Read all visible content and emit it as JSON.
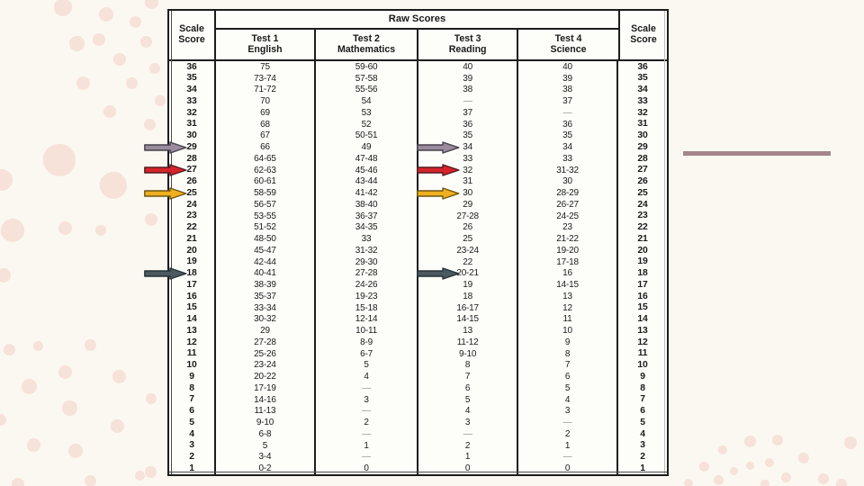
{
  "slide": {
    "background": "#fbf8f1"
  },
  "decor": {
    "accent_line_color": "#a5868c",
    "dot_color": "#f6e2d9"
  },
  "table": {
    "raw_scores_header": "Raw Scores",
    "scale_header_line1": "Scale",
    "scale_header_line2": "Score",
    "tests": [
      {
        "line1": "Test 1",
        "line2": "English"
      },
      {
        "line1": "Test 2",
        "line2": "Mathematics"
      },
      {
        "line1": "Test 3",
        "line2": "Reading"
      },
      {
        "line1": "Test 4",
        "line2": "Science"
      }
    ],
    "rows": [
      {
        "scale": "36",
        "english": "75",
        "math": "59-60",
        "reading": "40",
        "science": "40"
      },
      {
        "scale": "35",
        "english": "73-74",
        "math": "57-58",
        "reading": "39",
        "science": "39"
      },
      {
        "scale": "34",
        "english": "71-72",
        "math": "55-56",
        "reading": "38",
        "science": "38"
      },
      {
        "scale": "33",
        "english": "70",
        "math": "54",
        "reading": "—",
        "science": "37"
      },
      {
        "scale": "32",
        "english": "69",
        "math": "53",
        "reading": "37",
        "science": "—"
      },
      {
        "scale": "31",
        "english": "68",
        "math": "52",
        "reading": "36",
        "science": "36"
      },
      {
        "scale": "30",
        "english": "67",
        "math": "50-51",
        "reading": "35",
        "science": "35"
      },
      {
        "scale": "29",
        "english": "66",
        "math": "49",
        "reading": "34",
        "science": "34"
      },
      {
        "scale": "28",
        "english": "64-65",
        "math": "47-48",
        "reading": "33",
        "science": "33"
      },
      {
        "scale": "27",
        "english": "62-63",
        "math": "45-46",
        "reading": "32",
        "science": "31-32"
      },
      {
        "scale": "26",
        "english": "60-61",
        "math": "43-44",
        "reading": "31",
        "science": "30"
      },
      {
        "scale": "25",
        "english": "58-59",
        "math": "41-42",
        "reading": "30",
        "science": "28-29"
      },
      {
        "scale": "24",
        "english": "56-57",
        "math": "38-40",
        "reading": "29",
        "science": "26-27"
      },
      {
        "scale": "23",
        "english": "53-55",
        "math": "36-37",
        "reading": "27-28",
        "science": "24-25"
      },
      {
        "scale": "22",
        "english": "51-52",
        "math": "34-35",
        "reading": "26",
        "science": "23"
      },
      {
        "scale": "21",
        "english": "48-50",
        "math": "33",
        "reading": "25",
        "science": "21-22"
      },
      {
        "scale": "20",
        "english": "45-47",
        "math": "31-32",
        "reading": "23-24",
        "science": "19-20"
      },
      {
        "scale": "19",
        "english": "42-44",
        "math": "29-30",
        "reading": "22",
        "science": "17-18"
      },
      {
        "scale": "18",
        "english": "40-41",
        "math": "27-28",
        "reading": "20-21",
        "science": "16"
      },
      {
        "scale": "17",
        "english": "38-39",
        "math": "24-26",
        "reading": "19",
        "science": "14-15"
      },
      {
        "scale": "16",
        "english": "35-37",
        "math": "19-23",
        "reading": "18",
        "science": "13"
      },
      {
        "scale": "15",
        "english": "33-34",
        "math": "15-18",
        "reading": "16-17",
        "science": "12"
      },
      {
        "scale": "14",
        "english": "30-32",
        "math": "12-14",
        "reading": "14-15",
        "science": "11"
      },
      {
        "scale": "13",
        "english": "29",
        "math": "10-11",
        "reading": "13",
        "science": "10"
      },
      {
        "scale": "12",
        "english": "27-28",
        "math": "8-9",
        "reading": "11-12",
        "science": "9"
      },
      {
        "scale": "11",
        "english": "25-26",
        "math": "6-7",
        "reading": "9-10",
        "science": "8"
      },
      {
        "scale": "10",
        "english": "23-24",
        "math": "5",
        "reading": "8",
        "science": "7"
      },
      {
        "scale": "9",
        "english": "20-22",
        "math": "4",
        "reading": "7",
        "science": "6"
      },
      {
        "scale": "8",
        "english": "17-19",
        "math": "—",
        "reading": "6",
        "science": "5"
      },
      {
        "scale": "7",
        "english": "14-16",
        "math": "3",
        "reading": "5",
        "science": "4"
      },
      {
        "scale": "6",
        "english": "11-13",
        "math": "—",
        "reading": "4",
        "science": "3"
      },
      {
        "scale": "5",
        "english": "9-10",
        "math": "2",
        "reading": "3",
        "science": "—"
      },
      {
        "scale": "4",
        "english": "6-8",
        "math": "—",
        "reading": "—",
        "science": "2"
      },
      {
        "scale": "3",
        "english": "5",
        "math": "1",
        "reading": "2",
        "science": "1"
      },
      {
        "scale": "2",
        "english": "3-4",
        "math": "—",
        "reading": "1",
        "science": "—"
      },
      {
        "scale": "1",
        "english": "0-2",
        "math": "0",
        "reading": "0",
        "science": "0"
      }
    ]
  },
  "arrows": [
    {
      "name": "purple-arrow",
      "fill": "#9a8b9d",
      "outline": "#46404c",
      "scale": 29
    },
    {
      "name": "red-arrow",
      "fill": "#d6242b",
      "outline": "#541d1f",
      "scale": 27
    },
    {
      "name": "gold-arrow",
      "fill": "#eeb01f",
      "outline": "#6e5613",
      "scale": 25
    },
    {
      "name": "slate-arrow",
      "fill": "#4b5a60",
      "outline": "#263338",
      "scale": 18
    }
  ]
}
